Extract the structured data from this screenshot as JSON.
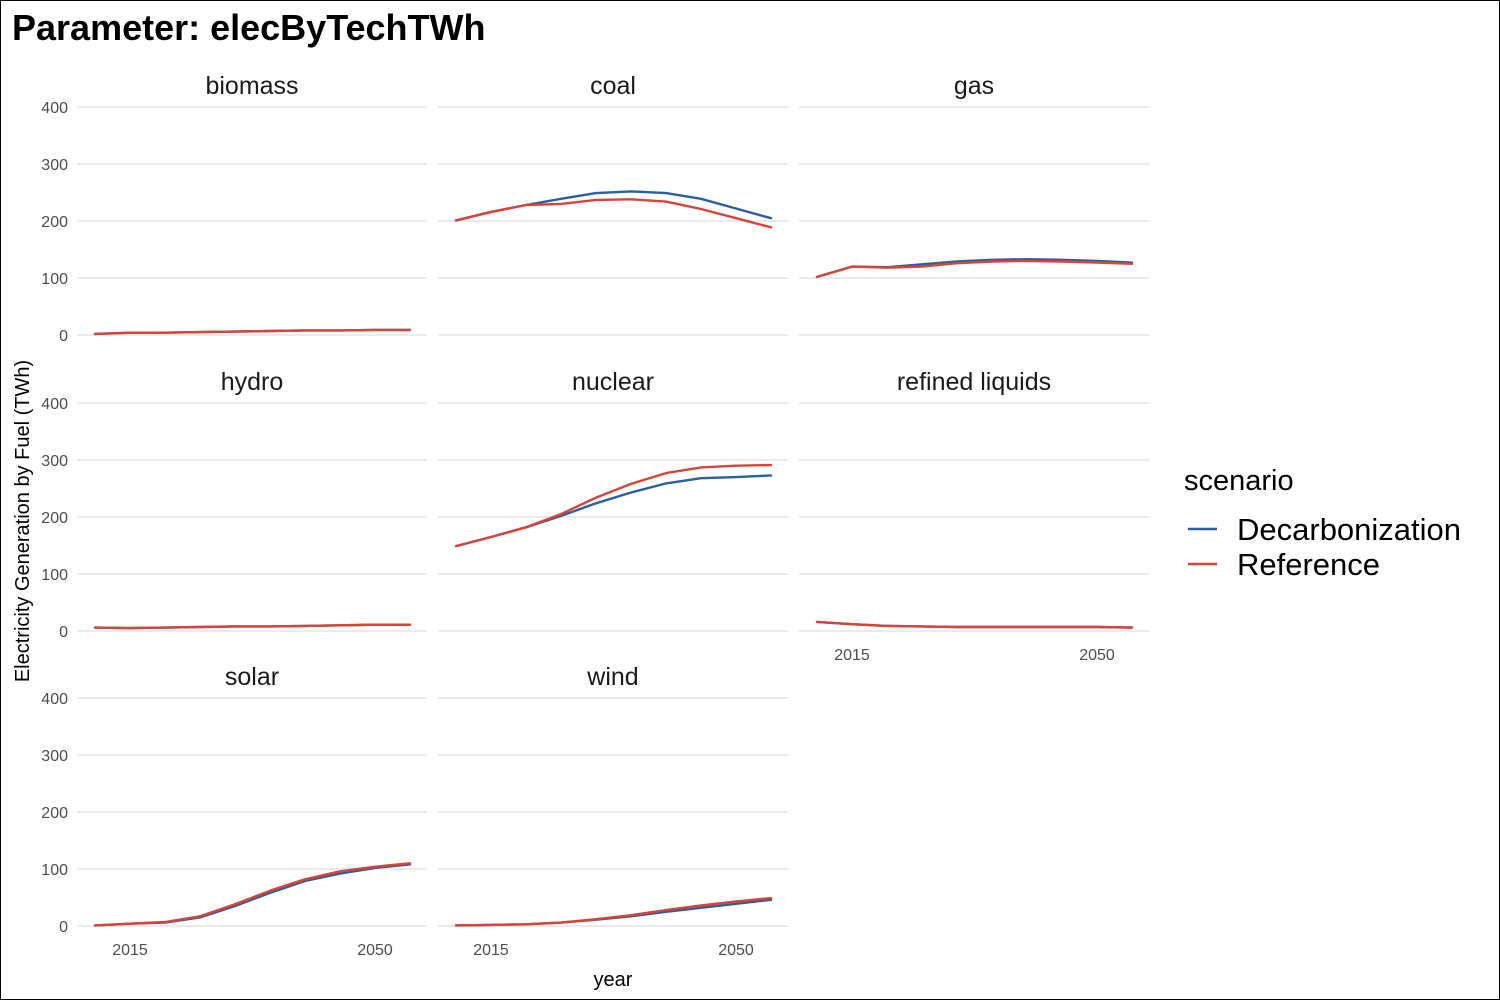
{
  "title": "Parameter: elecByTechTWh",
  "chart_data": {
    "type": "line",
    "title": "Parameter: elecByTechTWh",
    "xlabel": "year",
    "ylabel": "Electricity Generation by Fuel (TWh)",
    "ylim": [
      0,
      400
    ],
    "y_ticks": [
      0,
      100,
      200,
      300,
      400
    ],
    "x_ticks": [
      2015,
      2050
    ],
    "xlim": [
      2010,
      2055
    ],
    "grid": "major horizontal only",
    "legend_title": "scenario",
    "legend_placement": "right",
    "x": [
      2010,
      2015,
      2020,
      2025,
      2030,
      2035,
      2040,
      2045,
      2050,
      2055
    ],
    "series_names": [
      "Decarbonization",
      "Reference"
    ],
    "series_colors": {
      "Decarbonization": "#2c5f9e",
      "Reference": "#d9443a"
    },
    "panels": [
      {
        "label": "biomass",
        "series": [
          {
            "name": "Decarbonization",
            "values": [
              2,
              4,
              4,
              5,
              6,
              7,
              8,
              8,
              9,
              9
            ]
          },
          {
            "name": "Reference",
            "values": [
              2,
              4,
              4,
              5,
              6,
              7,
              8,
              8,
              9,
              9
            ]
          }
        ]
      },
      {
        "label": "coal",
        "series": [
          {
            "name": "Decarbonization",
            "values": [
              201,
              216,
              228,
              239,
              249,
              252,
              249,
              239,
              222,
              205
            ]
          },
          {
            "name": "Reference",
            "values": [
              201,
              216,
              228,
              230,
              237,
              238,
              234,
              221,
              205,
              189
            ]
          }
        ]
      },
      {
        "label": "gas",
        "series": [
          {
            "name": "Decarbonization",
            "values": [
              102,
              120,
              119,
              124,
              129,
              132,
              133,
              132,
              130,
              127
            ]
          },
          {
            "name": "Reference",
            "values": [
              102,
              120,
              118,
              120,
              126,
              129,
              130,
              129,
              127,
              125
            ]
          }
        ]
      },
      {
        "label": "hydro",
        "series": [
          {
            "name": "Decarbonization",
            "values": [
              6,
              5,
              6,
              7,
              8,
              8,
              9,
              10,
              11,
              11
            ]
          },
          {
            "name": "Reference",
            "values": [
              6,
              5,
              6,
              7,
              8,
              8,
              9,
              10,
              11,
              11
            ]
          }
        ]
      },
      {
        "label": "nuclear",
        "series": [
          {
            "name": "Decarbonization",
            "values": [
              149,
              165,
              182,
              202,
              224,
              243,
              259,
              268,
              270,
              273
            ]
          },
          {
            "name": "Reference",
            "values": [
              149,
              165,
              182,
              205,
              234,
              258,
              277,
              287,
              290,
              291
            ]
          }
        ]
      },
      {
        "label": "refined liquids",
        "series": [
          {
            "name": "Decarbonization",
            "values": [
              16,
              12,
              9,
              8,
              7,
              7,
              7,
              7,
              7,
              6
            ]
          },
          {
            "name": "Reference",
            "values": [
              16,
              12,
              9,
              8,
              7,
              7,
              7,
              7,
              7,
              6
            ]
          }
        ]
      },
      {
        "label": "solar",
        "series": [
          {
            "name": "Decarbonization",
            "values": [
              1,
              4,
              6,
              15,
              35,
              58,
              79,
              92,
              102,
              108
            ]
          },
          {
            "name": "Reference",
            "values": [
              1,
              4,
              7,
              17,
              38,
              62,
              82,
              96,
              104,
              110
            ]
          }
        ]
      },
      {
        "label": "wind",
        "series": [
          {
            "name": "Decarbonization",
            "values": [
              1,
              2,
              3,
              6,
              11,
              17,
              25,
              32,
              39,
              46
            ]
          },
          {
            "name": "Reference",
            "values": [
              1,
              2,
              3,
              6,
              12,
              19,
              28,
              36,
              43,
              49
            ]
          }
        ]
      }
    ]
  }
}
